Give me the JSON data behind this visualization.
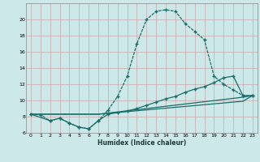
{
  "xlabel": "Humidex (Indice chaleur)",
  "bg_color": "#cce8e8",
  "grid_color": "#add4d4",
  "line_color": "#1a6e6a",
  "xlim": [
    -0.5,
    23.5
  ],
  "ylim": [
    6,
    22
  ],
  "yticks": [
    6,
    8,
    10,
    12,
    14,
    16,
    18,
    20
  ],
  "xticks": [
    0,
    1,
    2,
    3,
    4,
    5,
    6,
    7,
    8,
    9,
    10,
    11,
    12,
    13,
    14,
    15,
    16,
    17,
    18,
    19,
    20,
    21,
    22,
    23
  ],
  "curve1_x": [
    0,
    1,
    2,
    3,
    4,
    5,
    6,
    7,
    8,
    9,
    10,
    11,
    12,
    13,
    14,
    15,
    16,
    17,
    18,
    19,
    20,
    21,
    22,
    23
  ],
  "curve1_y": [
    8.3,
    8.2,
    7.5,
    7.8,
    7.2,
    6.7,
    6.5,
    7.5,
    8.8,
    10.5,
    13.0,
    17.0,
    20.0,
    21.0,
    21.2,
    21.0,
    19.5,
    18.5,
    17.5,
    13.0,
    12.0,
    11.3,
    10.6,
    10.6
  ],
  "curve2_x": [
    0,
    2,
    3,
    4,
    5,
    6,
    7,
    8,
    9,
    10,
    11,
    12,
    13,
    14,
    15,
    16,
    17,
    18,
    19,
    20,
    21,
    22,
    23
  ],
  "curve2_y": [
    8.3,
    7.5,
    7.8,
    7.2,
    6.7,
    6.5,
    7.5,
    8.3,
    8.5,
    8.7,
    9.0,
    9.4,
    9.8,
    10.2,
    10.5,
    11.0,
    11.4,
    11.7,
    12.2,
    12.8,
    13.0,
    10.6,
    10.6
  ],
  "curve3_x": [
    0,
    7,
    22,
    23
  ],
  "curve3_y": [
    8.3,
    8.3,
    10.4,
    10.6
  ],
  "curve4_x": [
    0,
    7,
    22,
    23
  ],
  "curve4_y": [
    8.3,
    8.3,
    9.9,
    10.6
  ]
}
